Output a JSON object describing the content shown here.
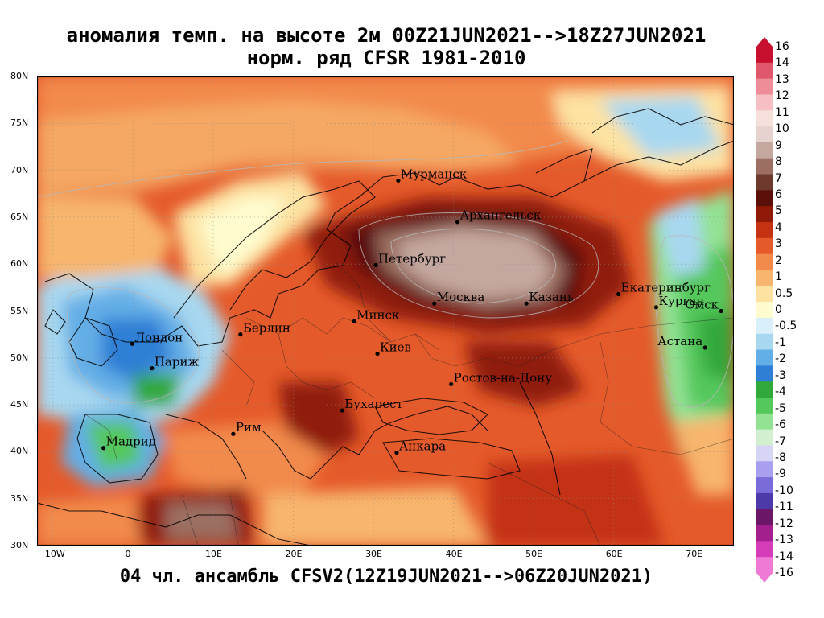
{
  "title": {
    "line1": "аномалия темп. на высоте 2м 00Z21JUN2021-->18Z27JUN2021",
    "line2": "норм. ряд CFSR 1981-2010"
  },
  "subtitle": "04 чл. ансамбль CFSV2(12Z19JUN2021-->06Z20JUN2021)",
  "map": {
    "lon_range": [
      -12,
      75
    ],
    "lat_range": [
      30,
      80
    ],
    "lat_labels": [
      "80N",
      "75N",
      "70N",
      "65N",
      "60N",
      "55N",
      "50N",
      "45N",
      "40N",
      "35N",
      "30N"
    ],
    "lat_values": [
      80,
      75,
      70,
      65,
      60,
      55,
      50,
      45,
      40,
      35,
      30
    ],
    "lon_labels": [
      "10W",
      "0",
      "10E",
      "20E",
      "30E",
      "40E",
      "50E",
      "60E",
      "70E"
    ],
    "lon_values": [
      -10,
      0,
      10,
      20,
      30,
      40,
      50,
      60,
      70
    ],
    "cities": [
      {
        "name": "Мурманск",
        "lon": 33.1,
        "lat": 68.9
      },
      {
        "name": "Архангельск",
        "lon": 40.5,
        "lat": 64.5
      },
      {
        "name": "Петербург",
        "lon": 30.3,
        "lat": 59.9
      },
      {
        "name": "Москва",
        "lon": 37.6,
        "lat": 55.8
      },
      {
        "name": "Казань",
        "lon": 49.1,
        "lat": 55.8
      },
      {
        "name": "Екатеринбург",
        "lon": 60.6,
        "lat": 56.8
      },
      {
        "name": "Курган",
        "lon": 65.3,
        "lat": 55.4
      },
      {
        "name": "Омск",
        "lon": 73.4,
        "lat": 55.0
      },
      {
        "name": "Астана",
        "lon": 71.4,
        "lat": 51.1
      },
      {
        "name": "Минск",
        "lon": 27.6,
        "lat": 53.9
      },
      {
        "name": "Берлин",
        "lon": 13.4,
        "lat": 52.5
      },
      {
        "name": "Лондон",
        "lon": -0.1,
        "lat": 51.5
      },
      {
        "name": "Париж",
        "lon": 2.35,
        "lat": 48.9
      },
      {
        "name": "Киев",
        "lon": 30.5,
        "lat": 50.45
      },
      {
        "name": "Ростов-на-Дону",
        "lon": 39.7,
        "lat": 47.2
      },
      {
        "name": "Бухарест",
        "lon": 26.1,
        "lat": 44.4
      },
      {
        "name": "Рим",
        "lon": 12.5,
        "lat": 41.9
      },
      {
        "name": "Мадрид",
        "lon": -3.7,
        "lat": 40.4
      },
      {
        "name": "Анкара",
        "lon": 32.9,
        "lat": 39.9
      }
    ],
    "anomaly_regions": [
      {
        "value": 3,
        "note": "broad warm anomaly over eastern Europe"
      },
      {
        "value": 9,
        "note": "central Russia max"
      },
      {
        "value": -3,
        "note": "western Europe / Iberia"
      },
      {
        "value": -5,
        "note": "western Siberia"
      }
    ]
  },
  "colorbar": {
    "labels": [
      "16",
      "14",
      "13",
      "12",
      "11",
      "10",
      "9",
      "8",
      "7",
      "6",
      "5",
      "4",
      "3",
      "2",
      "1",
      "0.5",
      "0",
      "-0.5",
      "-1",
      "-2",
      "-3",
      "-4",
      "-5",
      "-6",
      "-7",
      "-8",
      "-9",
      "-10",
      "-11",
      "-12",
      "-13",
      "-14",
      "-16"
    ],
    "colors": [
      "#c8102e",
      "#e0566a",
      "#ee8c98",
      "#f6bfc4",
      "#f7e0dc",
      "#e6d3cf",
      "#c4a8a0",
      "#9c6f62",
      "#6e3a2e",
      "#5a1008",
      "#901a08",
      "#c43212",
      "#e55a2a",
      "#f28a4c",
      "#f7b56d",
      "#fde2a2",
      "#fefccf",
      "#d9f0fa",
      "#a8d8f0",
      "#63aee6",
      "#2f7fd6",
      "#31a83a",
      "#55c85c",
      "#93e294",
      "#d2f0d0",
      "#d7d5f5",
      "#a8a0ee",
      "#7a6cd8",
      "#4b3aa8",
      "#6b1666",
      "#a31f8e",
      "#d43cb8",
      "#ee7ad6"
    ],
    "arrow_top": "#c8102e",
    "arrow_bottom": "#ee7ad6"
  }
}
